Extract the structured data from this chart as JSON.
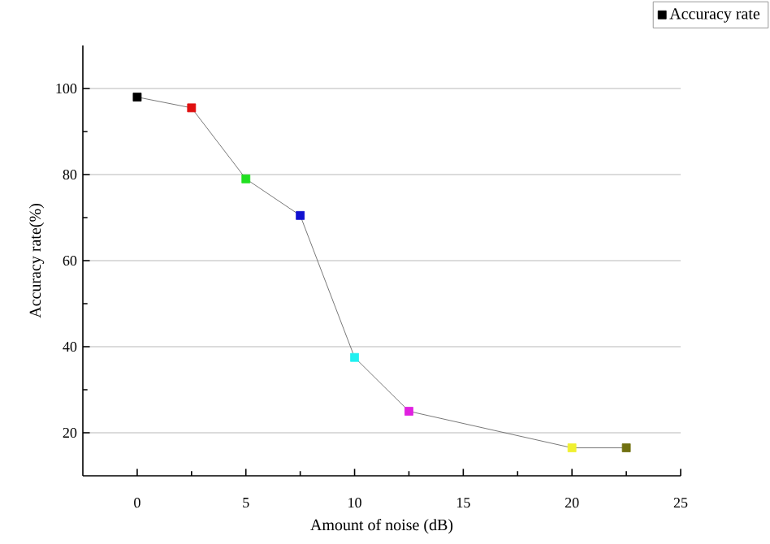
{
  "chart_data": {
    "type": "line",
    "xlabel": "Amount of noise (dB)",
    "ylabel": "Accuracy rate(%)",
    "x": [
      0,
      2.5,
      5,
      7.5,
      10,
      12.5,
      20,
      22.5
    ],
    "series": [
      {
        "name": "Accuracy rate",
        "color": "#555555",
        "colors": [
          "#000000",
          "#e01010",
          "#20e020",
          "#1010d0",
          "#20f0f0",
          "#e020e0",
          "#f0f030",
          "#707010"
        ],
        "values": [
          98,
          95.5,
          79,
          70.5,
          37.5,
          25,
          16.5,
          16.5
        ]
      }
    ],
    "xlim": [
      -2.5,
      25
    ],
    "ylim": [
      10,
      110
    ],
    "xticks": [
      0,
      5,
      10,
      15,
      20,
      25
    ],
    "yticks": [
      20,
      40,
      60,
      80,
      100
    ],
    "grid": "y",
    "legend": "top right",
    "marker": "square",
    "line_style": "solid"
  }
}
